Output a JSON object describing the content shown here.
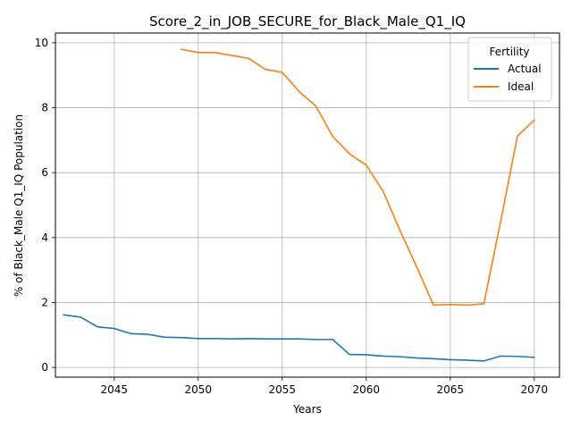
{
  "chart_data": {
    "type": "line",
    "title": "Score_2_in_JOB_SECURE_for_Black_Male_Q1_IQ",
    "xlabel": "Years",
    "ylabel": "% of Black_Male Q1_IQ Population",
    "xlim": [
      2041.5,
      2071.5
    ],
    "ylim": [
      -0.3,
      10.3
    ],
    "xticks": [
      2045,
      2050,
      2055,
      2060,
      2065,
      2070
    ],
    "yticks": [
      0,
      2,
      4,
      6,
      8,
      10
    ],
    "grid": true,
    "legend": {
      "title": "Fertility",
      "placement": "top-right"
    },
    "series": [
      {
        "name": "Actual",
        "color": "#1f77b4",
        "x": [
          2042,
          2043,
          2044,
          2045,
          2046,
          2047,
          2048,
          2049,
          2050,
          2051,
          2052,
          2053,
          2054,
          2055,
          2056,
          2057,
          2058,
          2059,
          2060,
          2061,
          2062,
          2063,
          2064,
          2065,
          2066,
          2067,
          2068,
          2069,
          2070
        ],
        "y": [
          1.62,
          1.55,
          1.25,
          1.2,
          1.04,
          1.02,
          0.93,
          0.92,
          0.89,
          0.89,
          0.88,
          0.89,
          0.88,
          0.88,
          0.88,
          0.86,
          0.86,
          0.4,
          0.39,
          0.35,
          0.33,
          0.29,
          0.27,
          0.24,
          0.22,
          0.2,
          0.35,
          0.34,
          0.31
        ]
      },
      {
        "name": "Ideal",
        "color": "#ff7f0e",
        "x": [
          2049,
          2050,
          2051,
          2052,
          2053,
          2054,
          2055,
          2056,
          2057,
          2058,
          2059,
          2060,
          2061,
          2062,
          2063,
          2064,
          2065,
          2066,
          2067,
          2068,
          2069,
          2070
        ],
        "y": [
          9.8,
          9.7,
          9.7,
          9.61,
          9.52,
          9.18,
          9.09,
          8.5,
          8.05,
          7.12,
          6.58,
          6.23,
          5.43,
          4.23,
          3.1,
          1.92,
          1.94,
          1.92,
          1.96,
          4.5,
          7.13,
          7.62
        ]
      }
    ]
  }
}
